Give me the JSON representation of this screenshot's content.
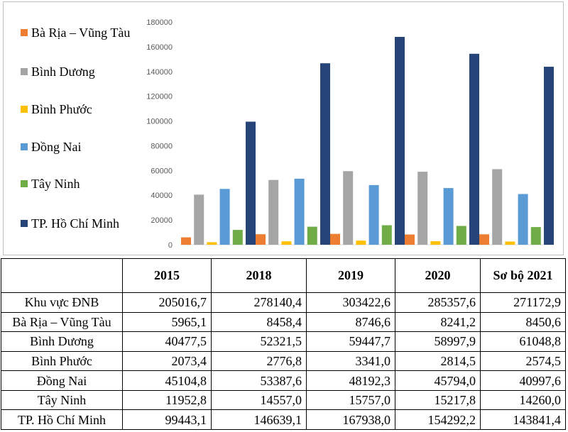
{
  "chart_data": {
    "type": "bar",
    "title": "",
    "xlabel": "",
    "ylabel": "",
    "categories": [
      "2015",
      "2018",
      "2019",
      "2020",
      "Sơ bộ 2021"
    ],
    "ylim": [
      0,
      180000
    ],
    "yticks": [
      "0",
      "20000",
      "40000",
      "60000",
      "80000",
      "100000",
      "120000",
      "140000",
      "160000",
      "180000"
    ],
    "legend_position": "left",
    "series": [
      {
        "name": "Bà Rịa – Vũng Tàu",
        "color": "#ed7d31",
        "values": [
          5965.1,
          8458.4,
          8746.6,
          8241.2,
          8450.6
        ]
      },
      {
        "name": "Bình Dương",
        "color": "#a5a5a5",
        "values": [
          40477.5,
          52321.5,
          59447.7,
          58997.9,
          61048.8
        ]
      },
      {
        "name": "Bình Phước",
        "color": "#ffc000",
        "values": [
          2073.4,
          2776.8,
          3341.0,
          2814.5,
          2574.5
        ]
      },
      {
        "name": "Đồng Nai",
        "color": "#5b9bd5",
        "values": [
          45104.8,
          53387.6,
          48192.3,
          45794.0,
          40997.6
        ]
      },
      {
        "name": "Tây Ninh",
        "color": "#70ad47",
        "values": [
          11952.8,
          14557.0,
          15757.0,
          15217.8,
          14260.0
        ]
      },
      {
        "name": "TP. Hồ Chí Minh",
        "color": "#264478",
        "values": [
          99443.1,
          146639.1,
          167938.0,
          154292.2,
          143841.4
        ]
      }
    ]
  },
  "table": {
    "corner": "",
    "headers": [
      "2015",
      "2018",
      "2019",
      "2020",
      "Sơ bộ 2021"
    ],
    "rows": [
      {
        "label": "Khu vực ĐNB",
        "values": [
          "205016,7",
          "278140,4",
          "303422,6",
          "285357,6",
          "271172,9"
        ]
      },
      {
        "label": "Bà Rịa – Vũng Tàu",
        "values": [
          "5965,1",
          "8458,4",
          "8746,6",
          "8241,2",
          "8450,6"
        ]
      },
      {
        "label": "Bình Dương",
        "values": [
          "40477,5",
          "52321,5",
          "59447,7",
          "58997,9",
          "61048,8"
        ]
      },
      {
        "label": "Bình Phước",
        "values": [
          "2073,4",
          "2776,8",
          "3341,0",
          "2814,5",
          "2574,5"
        ]
      },
      {
        "label": "Đồng Nai",
        "values": [
          "45104,8",
          "53387,6",
          "48192,3",
          "45794,0",
          "40997,6"
        ]
      },
      {
        "label": "Tây Ninh",
        "values": [
          "11952,8",
          "14557,0",
          "15757,0",
          "15217,8",
          "14260,0"
        ]
      },
      {
        "label": "TP. Hồ Chí Minh",
        "values": [
          "99443,1",
          "146639,1",
          "167938,0",
          "154292,2",
          "143841,4"
        ]
      }
    ]
  }
}
